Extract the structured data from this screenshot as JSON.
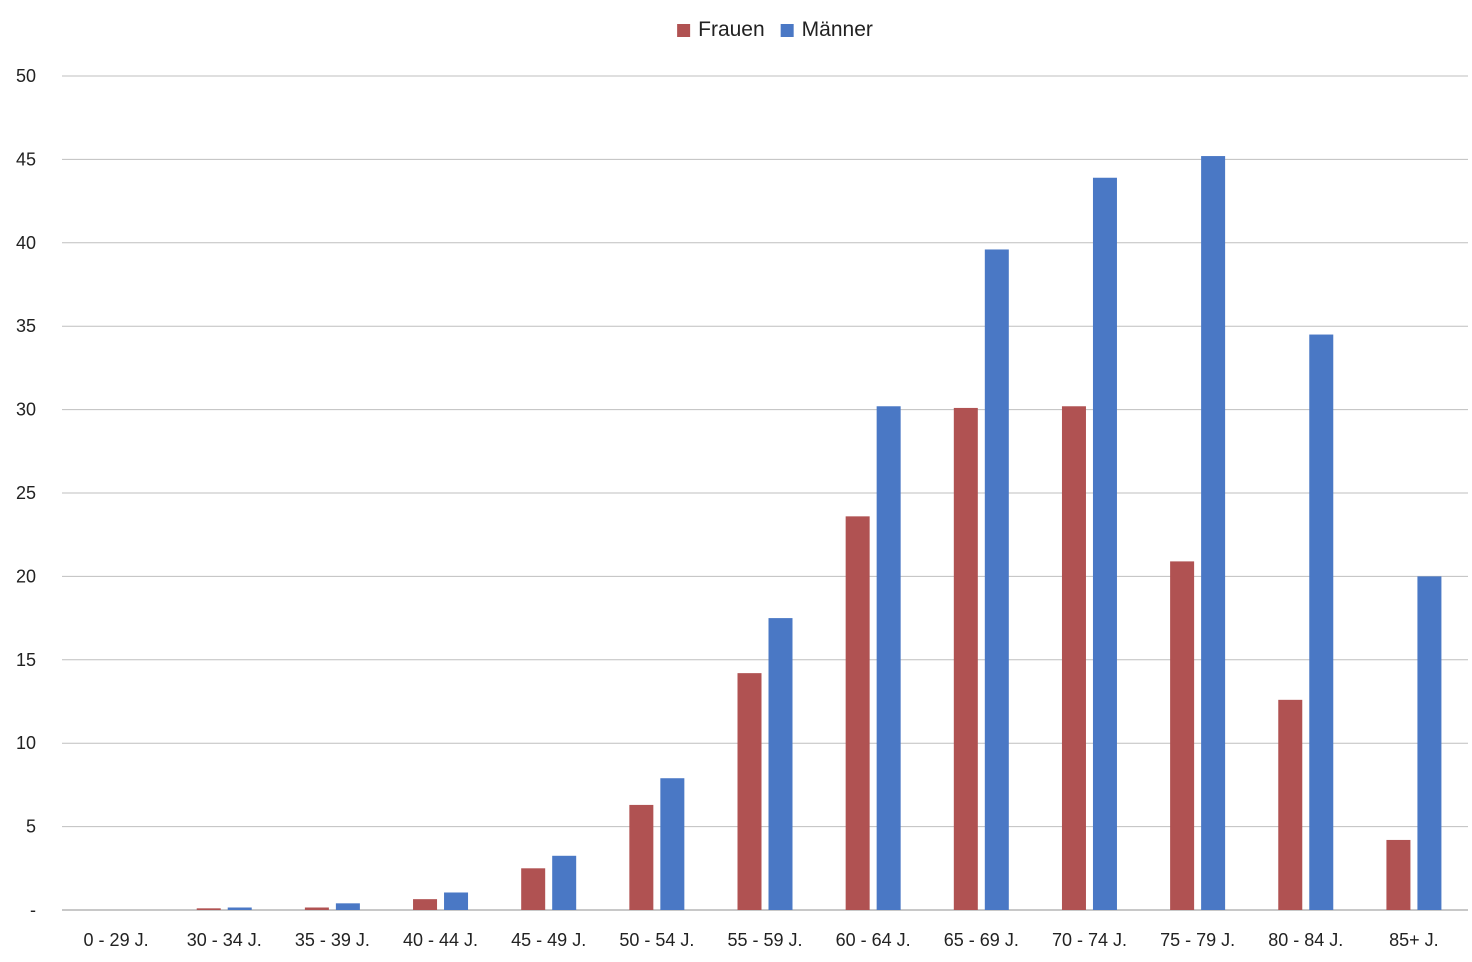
{
  "chart_data": {
    "type": "bar",
    "title": "",
    "xlabel": "",
    "ylabel": "",
    "categories": [
      "0 - 29 J.",
      "30 - 34 J.",
      "35 - 39 J.",
      "40 - 44 J.",
      "45 - 49 J.",
      "50 - 54 J.",
      "55 - 59 J.",
      "60 - 64 J.",
      "65 - 69 J.",
      "70 - 74 J.",
      "75 - 79 J.",
      "80 - 84 J.",
      "85+ J."
    ],
    "series": [
      {
        "name": "Frauen",
        "color": "#b05252",
        "values": [
          0,
          0.1,
          0.15,
          0.65,
          2.5,
          6.3,
          14.2,
          23.6,
          30.1,
          30.2,
          20.9,
          12.6,
          4.2
        ]
      },
      {
        "name": "Männer",
        "color": "#4a78c5",
        "values": [
          0,
          0.15,
          0.4,
          1.05,
          3.25,
          7.9,
          17.5,
          30.2,
          39.6,
          43.9,
          45.2,
          34.5,
          20.0
        ]
      }
    ],
    "ylim": [
      0,
      50
    ],
    "yticks": [
      0,
      5,
      10,
      15,
      20,
      25,
      30,
      35,
      40,
      45,
      50
    ],
    "ytick_labels": [
      "-",
      "5",
      "10",
      "15",
      "20",
      "25",
      "30",
      "35",
      "40",
      "45",
      "50"
    ],
    "grid": true,
    "legend_position": "top-center"
  }
}
